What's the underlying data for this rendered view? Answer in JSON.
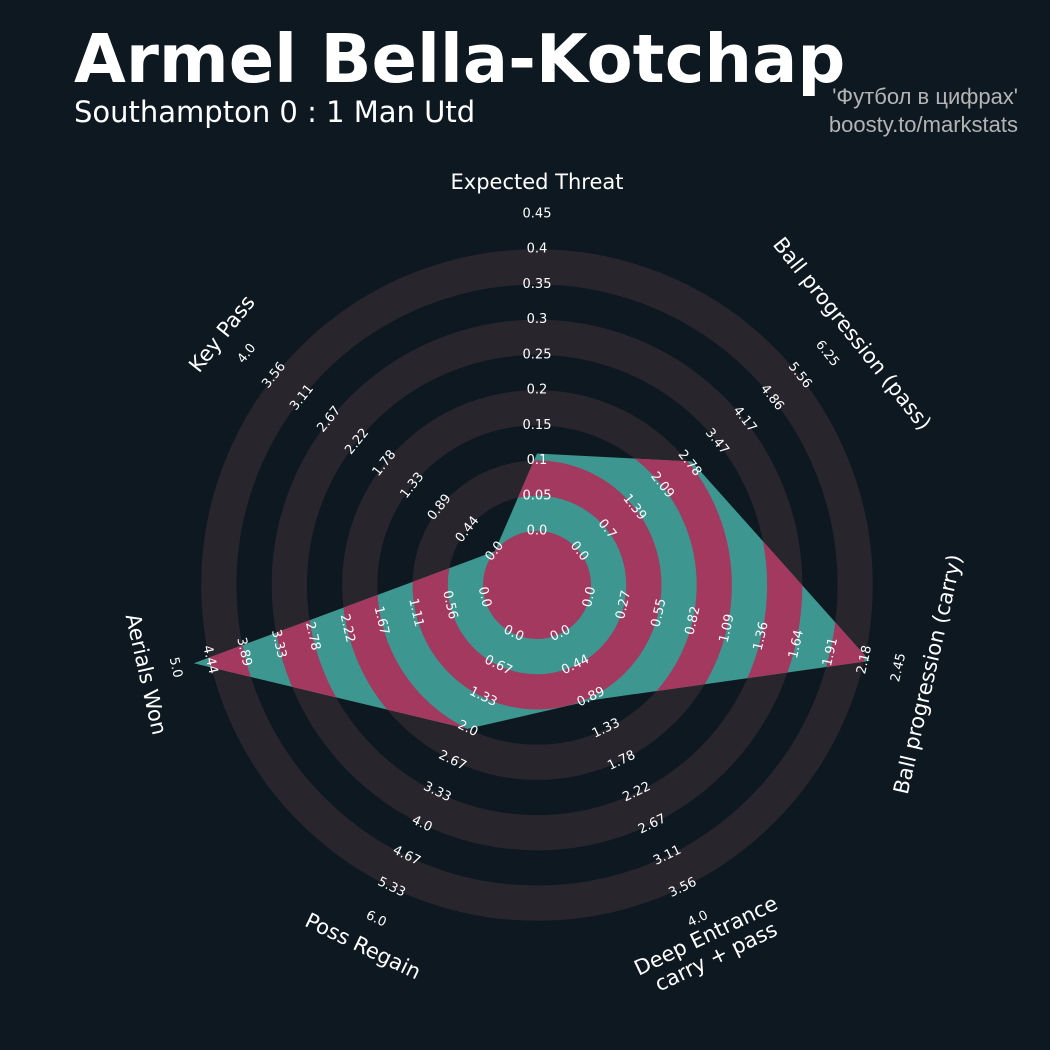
{
  "chart_data": {
    "type": "radar",
    "title": "Armel Bella-Kotchap",
    "subtitle": "Southampton 0 : 1 Man Utd",
    "credits": [
      "'Футбол в цифрах'",
      "boosty.to/markstats"
    ],
    "background": "#0e1820",
    "ring_color": "#28252c",
    "color": "#3d9690",
    "highlight_color": "#a3395f",
    "axes": [
      {
        "label": [
          "Expected Threat"
        ],
        "lim": [
          0,
          0.45
        ],
        "ticks": [
          {
            "value": 0,
            "label": "0.0"
          },
          0.05,
          0.1,
          0.15,
          0.2,
          0.25,
          0.3,
          0.35,
          0.4,
          0.45
        ]
      },
      {
        "label": [
          "Ball progression (pass)"
        ],
        "lim": [
          0,
          6.25
        ],
        "ticks": [
          {
            "value": 0,
            "label": "0.0"
          },
          0.7,
          1.39,
          2.09,
          2.78,
          3.47,
          4.17,
          4.86,
          5.56,
          6.25
        ]
      },
      {
        "label": [
          "Ball progression (carry)"
        ],
        "lim": [
          0,
          2.45
        ],
        "ticks": [
          {
            "value": 0,
            "label": "0.0"
          },
          0.27,
          0.55,
          0.82,
          1.09,
          1.36,
          1.64,
          1.91,
          2.18,
          2.45
        ]
      },
      {
        "label": [
          "Deep Entrance",
          "carry + pass"
        ],
        "lim": [
          0,
          4
        ],
        "ticks": [
          {
            "value": 0,
            "label": "0.0"
          },
          0.44,
          0.89,
          1.33,
          1.78,
          2.22,
          2.67,
          3.11,
          3.56,
          {
            "value": 4,
            "label": "4.0"
          }
        ]
      },
      {
        "label": [
          "Poss Regain"
        ],
        "lim": [
          0,
          6
        ],
        "ticks": [
          {
            "value": 0,
            "label": "0.0"
          },
          0.67,
          1.33,
          {
            "value": 2,
            "label": "2.0"
          },
          2.67,
          3.33,
          {
            "value": 4,
            "label": "4.0"
          },
          4.67,
          5.33,
          {
            "value": 6,
            "label": "6.0"
          }
        ]
      },
      {
        "label": [
          "Aerials Won"
        ],
        "lim": [
          0,
          5
        ],
        "ticks": [
          {
            "value": 0,
            "label": "0.0"
          },
          0.56,
          1.11,
          1.67,
          2.22,
          2.78,
          3.33,
          3.89,
          4.44,
          {
            "value": 5,
            "label": "5.0"
          }
        ]
      },
      {
        "label": [
          "Key Pass"
        ],
        "lim": [
          0,
          4
        ],
        "ticks": [
          {
            "value": 0,
            "label": "0.0"
          },
          0.44,
          0.89,
          1.33,
          1.78,
          2.22,
          2.67,
          3.11,
          3.56,
          {
            "value": 4,
            "label": "4.0"
          }
        ]
      }
    ],
    "values": [
      0.11,
      2.84,
      2.22,
      0.93,
      2.0,
      4.7,
      0
    ]
  }
}
